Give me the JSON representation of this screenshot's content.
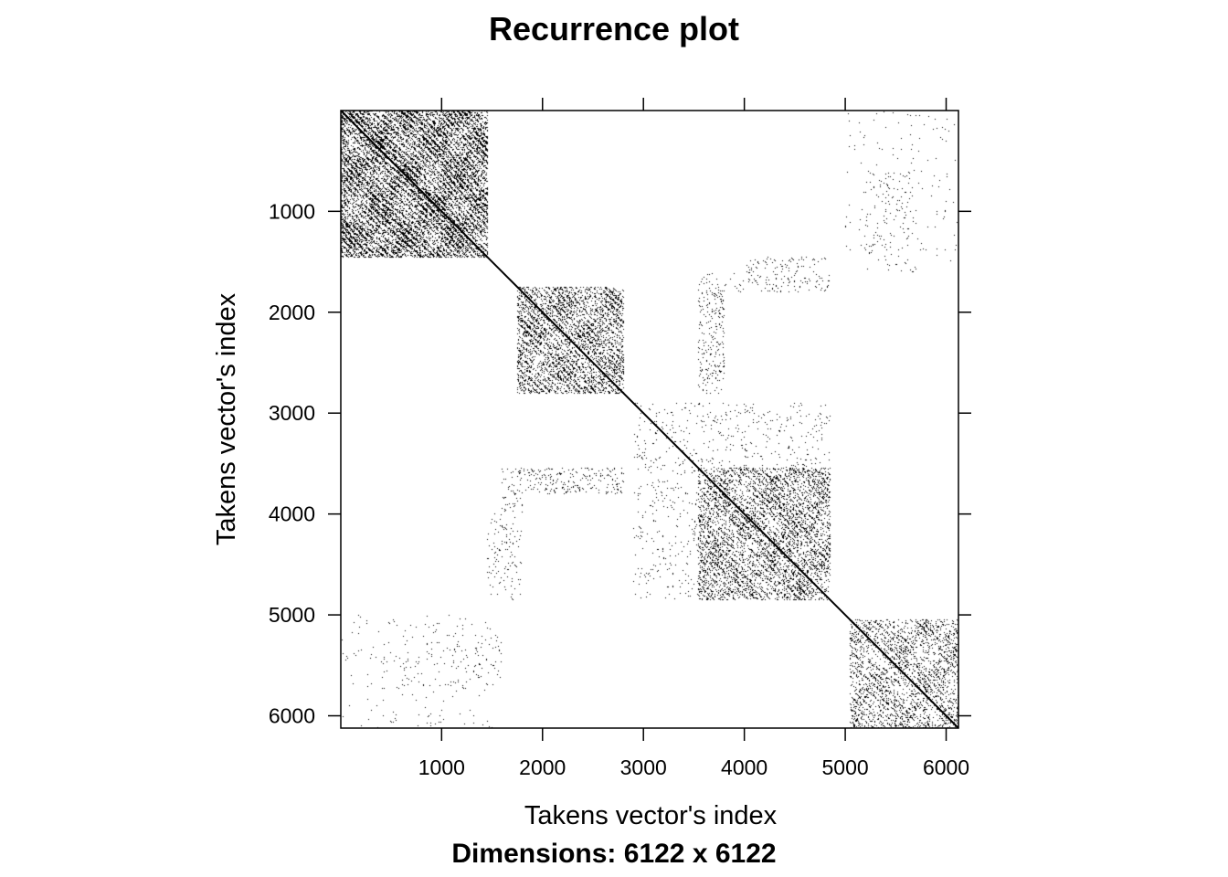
{
  "chart_data": {
    "type": "heatmap",
    "title": "Recurrence plot",
    "xlabel": "Takens vector's index",
    "ylabel": "Takens vector's index",
    "subtitle": "Dimensions: 6122 x 6122",
    "dimensions": [
      6122,
      6122
    ],
    "xlim": [
      1,
      6122
    ],
    "ylim": [
      1,
      6122
    ],
    "y_reversed": true,
    "x_ticks": [
      1000,
      2000,
      3000,
      4000,
      5000,
      6000
    ],
    "y_ticks": [
      1000,
      2000,
      3000,
      4000,
      5000,
      6000
    ],
    "x_tick_labels": [
      "1000",
      "2000",
      "3000",
      "4000",
      "5000",
      "6000"
    ],
    "y_tick_labels": [
      "1000",
      "2000",
      "3000",
      "4000",
      "5000",
      "6000"
    ],
    "color": "#000000",
    "background": "#ffffff",
    "dense_blocks": [
      {
        "x": [
          1,
          1450
        ],
        "y": [
          1,
          1450
        ],
        "density": 0.62
      },
      {
        "x": [
          1750,
          2800
        ],
        "y": [
          1750,
          2800
        ],
        "density": 0.42
      },
      {
        "x": [
          3550,
          4850
        ],
        "y": [
          3550,
          4850
        ],
        "density": 0.36
      },
      {
        "x": [
          5050,
          6122
        ],
        "y": [
          5050,
          6122
        ],
        "density": 0.28
      },
      {
        "x": [
          1750,
          2800
        ],
        "y": [
          3550,
          3800
        ],
        "density": 0.12
      },
      {
        "x": [
          3550,
          3800
        ],
        "y": [
          1750,
          2800
        ],
        "density": 0.12
      },
      {
        "x": [
          3550,
          4850
        ],
        "y": [
          1600,
          1800
        ],
        "density": 0.05
      },
      {
        "x": [
          1600,
          1800
        ],
        "y": [
          3550,
          4850
        ],
        "density": 0.05
      },
      {
        "x": [
          1450,
          1700
        ],
        "y": [
          4000,
          4800
        ],
        "density": 0.07
      },
      {
        "x": [
          4000,
          4800
        ],
        "y": [
          1450,
          1700
        ],
        "density": 0.07
      },
      {
        "x": [
          5200,
          5700
        ],
        "y": [
          600,
          1600
        ],
        "density": 0.04
      },
      {
        "x": [
          600,
          1600
        ],
        "y": [
          5200,
          5700
        ],
        "density": 0.04
      },
      {
        "x": [
          5000,
          6122
        ],
        "y": [
          1,
          1500
        ],
        "density": 0.015
      },
      {
        "x": [
          1,
          1500
        ],
        "y": [
          5000,
          6122
        ],
        "density": 0.015
      },
      {
        "x": [
          2900,
          4850
        ],
        "y": [
          2900,
          3550
        ],
        "density": 0.04
      },
      {
        "x": [
          2900,
          3550
        ],
        "y": [
          2900,
          4850
        ],
        "density": 0.04
      }
    ]
  }
}
